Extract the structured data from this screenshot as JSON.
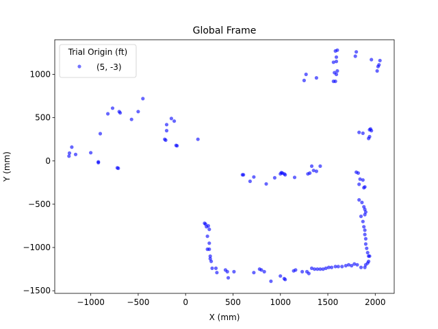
{
  "chart_data": {
    "type": "scatter",
    "title": "Global Frame",
    "xlabel": "X (mm)",
    "ylabel": "Y (mm)",
    "xlim": [
      -1380,
      2200
    ],
    "ylim": [
      -1530,
      1400
    ],
    "xticks": [
      -1000,
      -500,
      0,
      500,
      1000,
      1500,
      2000
    ],
    "yticks": [
      -1500,
      -1000,
      -500,
      0,
      500,
      1000
    ],
    "xtick_labels": [
      "−1000",
      "−500",
      "0",
      "500",
      "1000",
      "1500",
      "2000"
    ],
    "ytick_labels": [
      "−1500",
      "−1000",
      "−500",
      "0",
      "500",
      "1000"
    ],
    "grid": false,
    "legend": {
      "title": "Trial Origin (ft)",
      "placement": "top-left",
      "entries": [
        "(5, -3)"
      ]
    },
    "series": [
      {
        "name": "(5, -3)",
        "color": "#0000ff",
        "points": [
          [
            -1230,
            55
          ],
          [
            -1225,
            90
          ],
          [
            -1200,
            160
          ],
          [
            -1160,
            75
          ],
          [
            -1000,
            95
          ],
          [
            -920,
            -10
          ],
          [
            -920,
            -20
          ],
          [
            -900,
            315
          ],
          [
            -820,
            545
          ],
          [
            -770,
            610
          ],
          [
            -720,
            -80
          ],
          [
            -710,
            -85
          ],
          [
            -700,
            570
          ],
          [
            -690,
            555
          ],
          [
            -570,
            480
          ],
          [
            -500,
            570
          ],
          [
            -450,
            720
          ],
          [
            -220,
            250
          ],
          [
            -210,
            240
          ],
          [
            -200,
            350
          ],
          [
            -200,
            420
          ],
          [
            -150,
            490
          ],
          [
            -120,
            460
          ],
          [
            -100,
            180
          ],
          [
            -90,
            175
          ],
          [
            130,
            250
          ],
          [
            600,
            -160
          ],
          [
            610,
            -160
          ],
          [
            680,
            -235
          ],
          [
            720,
            -185
          ],
          [
            850,
            -265
          ],
          [
            940,
            -195
          ],
          [
            1000,
            -150
          ],
          [
            1010,
            -135
          ],
          [
            1020,
            -140
          ],
          [
            1040,
            -150
          ],
          [
            1050,
            -160
          ],
          [
            1150,
            -190
          ],
          [
            1290,
            -150
          ],
          [
            1310,
            -140
          ],
          [
            1330,
            -60
          ],
          [
            1350,
            -110
          ],
          [
            1380,
            -120
          ],
          [
            1420,
            -60
          ],
          [
            1250,
            930
          ],
          [
            1270,
            1000
          ],
          [
            1380,
            960
          ],
          [
            1560,
            920
          ],
          [
            1580,
            920
          ],
          [
            1570,
            1020
          ],
          [
            1590,
            1000
          ],
          [
            1600,
            1040
          ],
          [
            1560,
            1140
          ],
          [
            1590,
            1150
          ],
          [
            1590,
            1200
          ],
          [
            1580,
            1270
          ],
          [
            1600,
            1280
          ],
          [
            1790,
            1210
          ],
          [
            1800,
            1260
          ],
          [
            1960,
            1170
          ],
          [
            2020,
            1040
          ],
          [
            2030,
            1090
          ],
          [
            2040,
            1110
          ],
          [
            2050,
            1160
          ],
          [
            1830,
            330
          ],
          [
            1870,
            320
          ],
          [
            1930,
            260
          ],
          [
            1940,
            280
          ],
          [
            1940,
            360
          ],
          [
            1960,
            350
          ],
          [
            1950,
            370
          ],
          [
            1800,
            -130
          ],
          [
            1820,
            -140
          ],
          [
            1840,
            -210
          ],
          [
            1830,
            -270
          ],
          [
            1870,
            -220
          ],
          [
            1880,
            -310
          ],
          [
            1890,
            -300
          ],
          [
            1830,
            -450
          ],
          [
            1860,
            -480
          ],
          [
            1880,
            -530
          ],
          [
            1890,
            -560
          ],
          [
            1900,
            -590
          ],
          [
            1890,
            -620
          ],
          [
            1850,
            -640
          ],
          [
            1870,
            -700
          ],
          [
            1880,
            -760
          ],
          [
            1890,
            -800
          ],
          [
            1890,
            -850
          ],
          [
            1900,
            -900
          ],
          [
            1900,
            -960
          ],
          [
            1910,
            -1010
          ],
          [
            1920,
            -1060
          ],
          [
            1930,
            -1100
          ],
          [
            1940,
            -1100
          ],
          [
            1930,
            -1160
          ],
          [
            1920,
            -1180
          ],
          [
            1900,
            -1200
          ],
          [
            1890,
            -1230
          ],
          [
            1850,
            -1230
          ],
          [
            1810,
            -1200
          ],
          [
            1780,
            -1190
          ],
          [
            1750,
            -1210
          ],
          [
            1720,
            -1200
          ],
          [
            1690,
            -1210
          ],
          [
            1650,
            -1220
          ],
          [
            1610,
            -1220
          ],
          [
            1580,
            -1220
          ],
          [
            1540,
            -1230
          ],
          [
            1510,
            -1230
          ],
          [
            1480,
            -1240
          ],
          [
            1450,
            -1250
          ],
          [
            1420,
            -1250
          ],
          [
            1390,
            -1250
          ],
          [
            1360,
            -1250
          ],
          [
            1330,
            -1240
          ],
          [
            1300,
            -1300
          ],
          [
            1280,
            -1280
          ],
          [
            1230,
            -1280
          ],
          [
            1160,
            -1260
          ],
          [
            1140,
            -1270
          ],
          [
            1050,
            -1370
          ],
          [
            1040,
            -1360
          ],
          [
            1000,
            -1330
          ],
          [
            900,
            -1390
          ],
          [
            830,
            -1280
          ],
          [
            800,
            -1260
          ],
          [
            780,
            -1250
          ],
          [
            720,
            -1290
          ],
          [
            510,
            -1280
          ],
          [
            200,
            -720
          ],
          [
            210,
            -730
          ],
          [
            220,
            -760
          ],
          [
            240,
            -750
          ],
          [
            250,
            -790
          ],
          [
            230,
            -870
          ],
          [
            250,
            -950
          ],
          [
            230,
            -1020
          ],
          [
            250,
            -1020
          ],
          [
            260,
            -1100
          ],
          [
            260,
            -1130
          ],
          [
            270,
            -1160
          ],
          [
            280,
            -1240
          ],
          [
            320,
            -1240
          ],
          [
            330,
            -1290
          ],
          [
            420,
            -1260
          ],
          [
            440,
            -1280
          ],
          [
            450,
            -1350
          ]
        ]
      }
    ]
  }
}
